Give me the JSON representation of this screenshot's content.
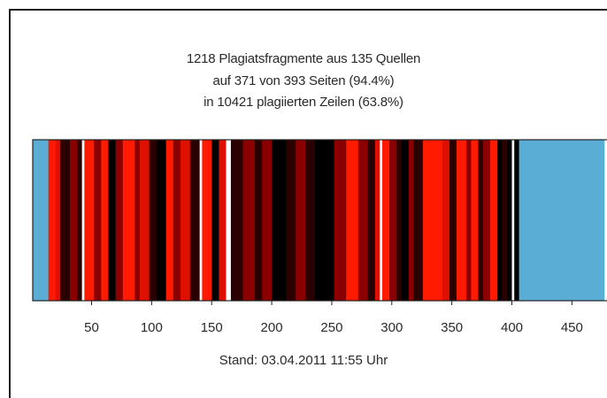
{
  "header": {
    "line1": "1218 Plagiatsfragmente aus 135 Quellen",
    "line2": "auf 371 von 393 Seiten (94.4%)",
    "line3": "in 10421 plagiierten Zeilen (63.8%)"
  },
  "footer": {
    "stand": "Stand: 03.04.2011 11:55 Uhr"
  },
  "colors": {
    "empty": "#5aaed6",
    "bright_red": "#ff1a00",
    "red": "#e01000",
    "dark_red": "#8a0000",
    "very_dark": "#2a0000",
    "black": "#000000",
    "no_plagiarism": "#ffffff"
  },
  "chart_data": {
    "type": "heatmap",
    "description_axis": "page number",
    "xlim": [
      1,
      477
    ],
    "x_ticks": [
      50,
      100,
      150,
      200,
      250,
      300,
      350,
      400,
      450
    ],
    "document_pages": 393,
    "pages_with_plagiarism": 371,
    "plagiarized_lines": 10421,
    "plagiarized_lines_percent": 63.8,
    "fragments": 1218,
    "sources": 135,
    "segments": [
      {
        "from": 1,
        "to": 14,
        "shade": "empty"
      },
      {
        "from": 14,
        "to": 20,
        "shade": "bright_red"
      },
      {
        "from": 20,
        "to": 24,
        "shade": "red"
      },
      {
        "from": 24,
        "to": 32,
        "shade": "very_dark"
      },
      {
        "from": 32,
        "to": 38,
        "shade": "dark_red"
      },
      {
        "from": 38,
        "to": 42,
        "shade": "very_dark"
      },
      {
        "from": 42,
        "to": 44,
        "shade": "no_plagiarism"
      },
      {
        "from": 44,
        "to": 52,
        "shade": "bright_red"
      },
      {
        "from": 52,
        "to": 58,
        "shade": "dark_red"
      },
      {
        "from": 58,
        "to": 64,
        "shade": "bright_red"
      },
      {
        "from": 64,
        "to": 70,
        "shade": "black"
      },
      {
        "from": 70,
        "to": 76,
        "shade": "dark_red"
      },
      {
        "from": 76,
        "to": 86,
        "shade": "bright_red"
      },
      {
        "from": 86,
        "to": 90,
        "shade": "dark_red"
      },
      {
        "from": 90,
        "to": 98,
        "shade": "red"
      },
      {
        "from": 98,
        "to": 104,
        "shade": "very_dark"
      },
      {
        "from": 104,
        "to": 112,
        "shade": "black"
      },
      {
        "from": 112,
        "to": 118,
        "shade": "bright_red"
      },
      {
        "from": 118,
        "to": 124,
        "shade": "dark_red"
      },
      {
        "from": 124,
        "to": 132,
        "shade": "red"
      },
      {
        "from": 132,
        "to": 140,
        "shade": "very_dark"
      },
      {
        "from": 140,
        "to": 142,
        "shade": "no_plagiarism"
      },
      {
        "from": 142,
        "to": 150,
        "shade": "bright_red"
      },
      {
        "from": 150,
        "to": 156,
        "shade": "black"
      },
      {
        "from": 156,
        "to": 162,
        "shade": "red"
      },
      {
        "from": 162,
        "to": 166,
        "shade": "no_plagiarism"
      },
      {
        "from": 166,
        "to": 176,
        "shade": "very_dark"
      },
      {
        "from": 176,
        "to": 186,
        "shade": "dark_red"
      },
      {
        "from": 186,
        "to": 192,
        "shade": "very_dark"
      },
      {
        "from": 192,
        "to": 200,
        "shade": "dark_red"
      },
      {
        "from": 200,
        "to": 212,
        "shade": "black"
      },
      {
        "from": 212,
        "to": 220,
        "shade": "very_dark"
      },
      {
        "from": 220,
        "to": 228,
        "shade": "dark_red"
      },
      {
        "from": 228,
        "to": 236,
        "shade": "very_dark"
      },
      {
        "from": 236,
        "to": 252,
        "shade": "black"
      },
      {
        "from": 252,
        "to": 262,
        "shade": "dark_red"
      },
      {
        "from": 262,
        "to": 272,
        "shade": "bright_red"
      },
      {
        "from": 272,
        "to": 280,
        "shade": "dark_red"
      },
      {
        "from": 280,
        "to": 286,
        "shade": "very_dark"
      },
      {
        "from": 286,
        "to": 290,
        "shade": "red"
      },
      {
        "from": 290,
        "to": 292,
        "shade": "no_plagiarism"
      },
      {
        "from": 292,
        "to": 298,
        "shade": "bright_red"
      },
      {
        "from": 298,
        "to": 304,
        "shade": "dark_red"
      },
      {
        "from": 304,
        "to": 308,
        "shade": "very_dark"
      },
      {
        "from": 308,
        "to": 314,
        "shade": "black"
      },
      {
        "from": 314,
        "to": 318,
        "shade": "dark_red"
      },
      {
        "from": 318,
        "to": 326,
        "shade": "very_dark"
      },
      {
        "from": 326,
        "to": 342,
        "shade": "bright_red"
      },
      {
        "from": 342,
        "to": 348,
        "shade": "red"
      },
      {
        "from": 348,
        "to": 354,
        "shade": "very_dark"
      },
      {
        "from": 354,
        "to": 362,
        "shade": "bright_red"
      },
      {
        "from": 362,
        "to": 366,
        "shade": "dark_red"
      },
      {
        "from": 366,
        "to": 372,
        "shade": "bright_red"
      },
      {
        "from": 372,
        "to": 376,
        "shade": "very_dark"
      },
      {
        "from": 376,
        "to": 382,
        "shade": "dark_red"
      },
      {
        "from": 382,
        "to": 388,
        "shade": "bright_red"
      },
      {
        "from": 388,
        "to": 392,
        "shade": "black"
      },
      {
        "from": 392,
        "to": 396,
        "shade": "very_dark"
      },
      {
        "from": 396,
        "to": 400,
        "shade": "black"
      },
      {
        "from": 400,
        "to": 402,
        "shade": "no_plagiarism"
      },
      {
        "from": 402,
        "to": 406,
        "shade": "black"
      },
      {
        "from": 406,
        "to": 477,
        "shade": "empty"
      }
    ]
  }
}
